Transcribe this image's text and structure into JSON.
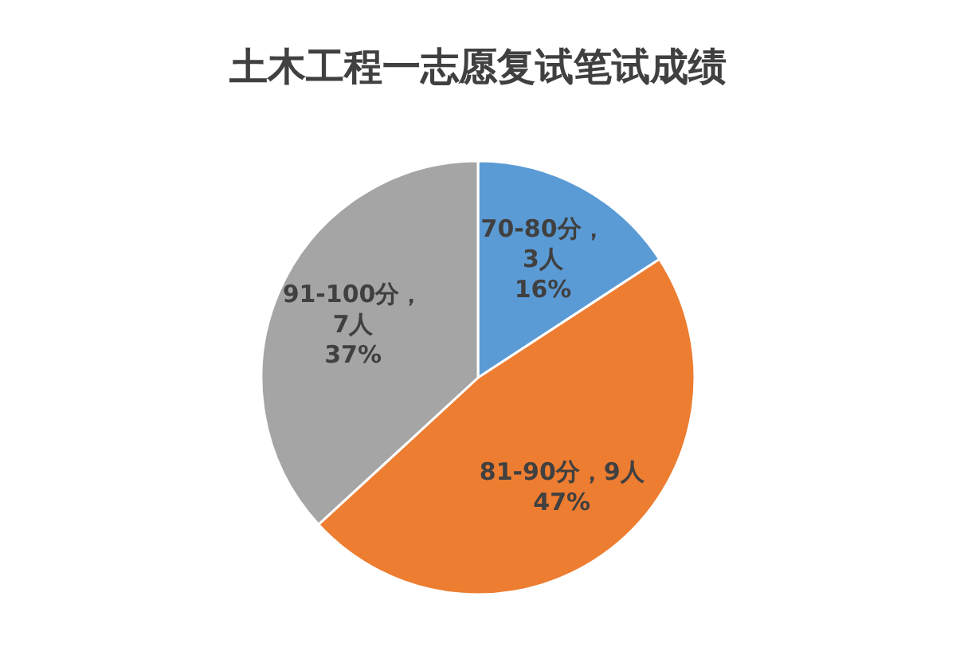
{
  "chart_data": {
    "type": "pie",
    "title": "土木工程一志愿复试笔试成绩",
    "categories": [
      "70-80分",
      "81-90分",
      "91-100分"
    ],
    "values": [
      3,
      9,
      7
    ],
    "value_labels": [
      "，\n3人\n16%",
      "，9人\n47%",
      "，\n7人\n37%"
    ],
    "colors": [
      "#5b9bd5",
      "#ed7d31",
      "#a5a5a5"
    ],
    "legend": false
  }
}
